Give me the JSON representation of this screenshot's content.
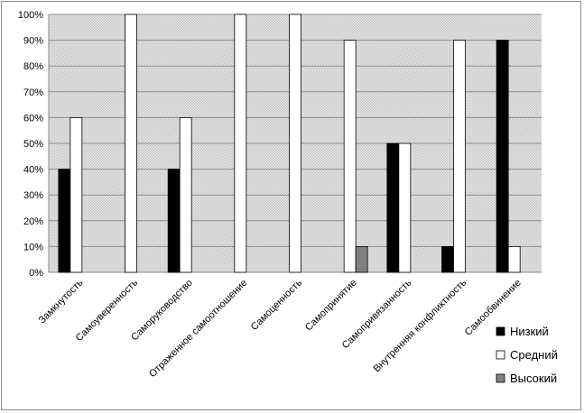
{
  "chart_data": {
    "type": "bar",
    "title": "",
    "xlabel": "",
    "ylabel": "",
    "ylim": [
      0,
      100
    ],
    "yticks": [
      "0%",
      "10%",
      "20%",
      "30%",
      "40%",
      "50%",
      "60%",
      "70%",
      "80%",
      "90%",
      "100%"
    ],
    "categories": [
      "Замкнутость",
      "Самоуверенность",
      "Саморуководство",
      "Отраженное самоотношение",
      "Самоценность",
      "Самопринятие",
      "Самопривязанность",
      "Внутренняя конфликтность",
      "Самообвинение"
    ],
    "series": [
      {
        "name": "Низкий",
        "color": "#000000",
        "values": [
          40,
          0,
          40,
          0,
          0,
          0,
          50,
          10,
          90
        ]
      },
      {
        "name": "Средний",
        "color": "#ffffff",
        "values": [
          60,
          100,
          60,
          100,
          100,
          90,
          50,
          90,
          10
        ]
      },
      {
        "name": "Высокий",
        "color": "#808080",
        "values": [
          0,
          0,
          0,
          0,
          0,
          10,
          0,
          0,
          0
        ]
      }
    ],
    "grid": true,
    "plot_background": "hatched-light-gray",
    "legend_position": "right-bottom"
  }
}
